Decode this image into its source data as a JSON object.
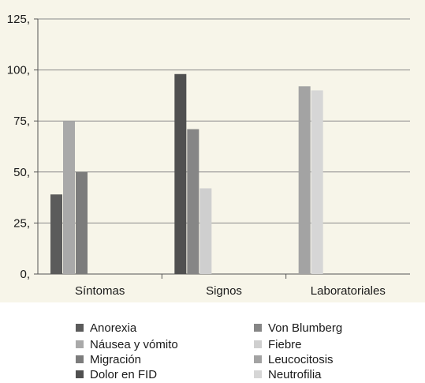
{
  "chart_data": {
    "type": "bar",
    "categories": [
      "Síntomas",
      "Signos",
      "Laboratoriales"
    ],
    "yticks": [
      "0,",
      "25,",
      "50,",
      "75,",
      "100,",
      "125,"
    ],
    "ylim": [
      0,
      125
    ],
    "grid": true,
    "legend_position": "bottom",
    "series": [
      {
        "name": "Anorexia",
        "color": "#5b5b5b",
        "values": [
          39,
          null,
          null
        ]
      },
      {
        "name": "Náusea y vómito",
        "color": "#a9a9a9",
        "values": [
          75,
          null,
          null
        ]
      },
      {
        "name": "Migración",
        "color": "#7c7c7c",
        "values": [
          50,
          null,
          null
        ]
      },
      {
        "name": "Dolor en FID",
        "color": "#505050",
        "values": [
          null,
          98,
          null
        ]
      },
      {
        "name": "Von Blumberg",
        "color": "#868686",
        "values": [
          null,
          71,
          null
        ]
      },
      {
        "name": "Fiebre",
        "color": "#cfcfcf",
        "values": [
          null,
          42,
          null
        ]
      },
      {
        "name": "Leucocitosis",
        "color": "#a3a3a3",
        "values": [
          null,
          null,
          92
        ]
      },
      {
        "name": "Neutrofilia",
        "color": "#d6d6d6",
        "values": [
          null,
          null,
          90
        ]
      }
    ]
  }
}
